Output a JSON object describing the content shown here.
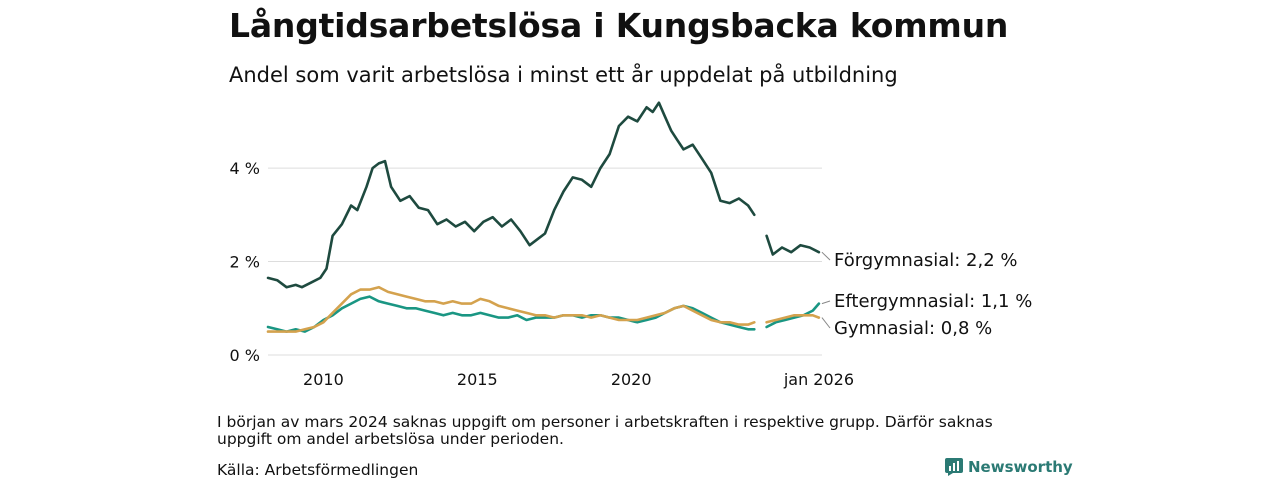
{
  "header": {
    "title": "Långtidsarbetslösa i Kungsbacka kommun",
    "subtitle": "Andel som varit arbetslösa i minst ett år uppdelat på utbildning"
  },
  "footer": {
    "note": "I början av mars 2024 saknas uppgift om personer i arbetskraften i respektive grupp. Därför saknas uppgift om andel arbetslösa under perioden.",
    "source": "Källa: Arbetsförmedlingen",
    "brand": "Newsworthy"
  },
  "colors": {
    "forgymnasial": "#1e4a3f",
    "eftergymnasial": "#1a9683",
    "gymnasial": "#d4a24e",
    "grid": "#dddddd",
    "text": "#111111"
  },
  "chart_data": {
    "type": "line",
    "title": "Långtidsarbetslösa i Kungsbacka kommun",
    "subtitle": "Andel som varit arbetslösa i minst ett år uppdelat på utbildning",
    "xlabel": "",
    "ylabel": "",
    "xlim": [
      2008.2,
      2026.2
    ],
    "ylim": [
      0,
      5.5
    ],
    "x_ticks": [
      2010,
      2015,
      2020,
      2026.1
    ],
    "x_tick_labels": [
      "2010",
      "2015",
      "2020",
      "jan 2026"
    ],
    "y_ticks": [
      0,
      2,
      4
    ],
    "y_tick_labels": [
      "0 %",
      "2 %",
      "4 %"
    ],
    "gap": [
      2024.0,
      2024.4
    ],
    "series": [
      {
        "name": "Förgymnasial",
        "end_label": "Förgymnasial: 2,2 %",
        "color": "#1e4a3f",
        "x": [
          2008.2,
          2008.5,
          2008.8,
          2009.1,
          2009.3,
          2009.6,
          2009.9,
          2010.1,
          2010.3,
          2010.6,
          2010.9,
          2011.1,
          2011.4,
          2011.6,
          2011.8,
          2012.0,
          2012.2,
          2012.5,
          2012.8,
          2013.1,
          2013.4,
          2013.7,
          2014.0,
          2014.3,
          2014.6,
          2014.9,
          2015.2,
          2015.5,
          2015.8,
          2016.1,
          2016.4,
          2016.7,
          2017.0,
          2017.2,
          2017.5,
          2017.8,
          2018.1,
          2018.4,
          2018.7,
          2019.0,
          2019.3,
          2019.6,
          2019.9,
          2020.2,
          2020.5,
          2020.7,
          2020.9,
          2021.1,
          2021.3,
          2021.5,
          2021.7,
          2022.0,
          2022.3,
          2022.6,
          2022.9,
          2023.2,
          2023.5,
          2023.8,
          2024.0,
          null,
          2024.4,
          2024.6,
          2024.9,
          2025.2,
          2025.5,
          2025.8,
          2026.1
        ],
        "values": [
          1.65,
          1.6,
          1.45,
          1.5,
          1.45,
          1.55,
          1.65,
          1.85,
          2.55,
          2.8,
          3.2,
          3.1,
          3.6,
          4.0,
          4.1,
          4.15,
          3.6,
          3.3,
          3.4,
          3.15,
          3.1,
          2.8,
          2.9,
          2.75,
          2.85,
          2.65,
          2.85,
          2.95,
          2.75,
          2.9,
          2.65,
          2.35,
          2.5,
          2.6,
          3.1,
          3.5,
          3.8,
          3.75,
          3.6,
          4.0,
          4.3,
          4.9,
          5.1,
          5.0,
          5.3,
          5.2,
          5.4,
          5.1,
          4.8,
          4.6,
          4.4,
          4.5,
          4.2,
          3.9,
          3.3,
          3.25,
          3.35,
          3.2,
          3.0,
          null,
          2.55,
          2.15,
          2.3,
          2.2,
          2.35,
          2.3,
          2.2
        ]
      },
      {
        "name": "Eftergymnasial",
        "end_label": "Eftergymnasial: 1,1 %",
        "color": "#1a9683",
        "x": [
          2008.2,
          2008.5,
          2008.8,
          2009.1,
          2009.4,
          2009.7,
          2010.0,
          2010.3,
          2010.6,
          2010.9,
          2011.2,
          2011.5,
          2011.8,
          2012.1,
          2012.4,
          2012.7,
          2013.0,
          2013.3,
          2013.6,
          2013.9,
          2014.2,
          2014.5,
          2014.8,
          2015.1,
          2015.4,
          2015.7,
          2016.0,
          2016.3,
          2016.6,
          2016.9,
          2017.2,
          2017.5,
          2017.8,
          2018.1,
          2018.4,
          2018.7,
          2019.0,
          2019.3,
          2019.6,
          2019.9,
          2020.2,
          2020.5,
          2020.8,
          2021.1,
          2021.4,
          2021.7,
          2022.0,
          2022.3,
          2022.6,
          2022.9,
          2023.2,
          2023.5,
          2023.8,
          2024.0,
          null,
          2024.4,
          2024.7,
          2025.0,
          2025.3,
          2025.6,
          2025.9,
          2026.1
        ],
        "values": [
          0.6,
          0.55,
          0.5,
          0.55,
          0.5,
          0.6,
          0.75,
          0.85,
          1.0,
          1.1,
          1.2,
          1.25,
          1.15,
          1.1,
          1.05,
          1.0,
          1.0,
          0.95,
          0.9,
          0.85,
          0.9,
          0.85,
          0.85,
          0.9,
          0.85,
          0.8,
          0.8,
          0.85,
          0.75,
          0.8,
          0.8,
          0.8,
          0.85,
          0.85,
          0.8,
          0.85,
          0.85,
          0.8,
          0.8,
          0.75,
          0.7,
          0.75,
          0.8,
          0.9,
          1.0,
          1.05,
          1.0,
          0.9,
          0.8,
          0.7,
          0.65,
          0.6,
          0.55,
          0.55,
          null,
          0.6,
          0.7,
          0.75,
          0.8,
          0.85,
          0.95,
          1.1
        ]
      },
      {
        "name": "Gymnasial",
        "end_label": "Gymnasial: 0,8 %",
        "color": "#d4a24e",
        "x": [
          2008.2,
          2008.5,
          2008.8,
          2009.1,
          2009.4,
          2009.7,
          2010.0,
          2010.3,
          2010.6,
          2010.9,
          2011.2,
          2011.5,
          2011.8,
          2012.1,
          2012.4,
          2012.7,
          2013.0,
          2013.3,
          2013.6,
          2013.9,
          2014.2,
          2014.5,
          2014.8,
          2015.1,
          2015.4,
          2015.7,
          2016.0,
          2016.3,
          2016.6,
          2016.9,
          2017.2,
          2017.5,
          2017.8,
          2018.1,
          2018.4,
          2018.7,
          2019.0,
          2019.3,
          2019.6,
          2019.9,
          2020.2,
          2020.5,
          2020.8,
          2021.1,
          2021.4,
          2021.7,
          2022.0,
          2022.3,
          2022.6,
          2022.9,
          2023.2,
          2023.5,
          2023.8,
          2024.0,
          null,
          2024.4,
          2024.7,
          2025.0,
          2025.3,
          2025.6,
          2025.9,
          2026.1
        ],
        "values": [
          0.5,
          0.5,
          0.5,
          0.5,
          0.55,
          0.6,
          0.7,
          0.9,
          1.1,
          1.3,
          1.4,
          1.4,
          1.45,
          1.35,
          1.3,
          1.25,
          1.2,
          1.15,
          1.15,
          1.1,
          1.15,
          1.1,
          1.1,
          1.2,
          1.15,
          1.05,
          1.0,
          0.95,
          0.9,
          0.85,
          0.85,
          0.8,
          0.85,
          0.85,
          0.85,
          0.8,
          0.85,
          0.8,
          0.75,
          0.75,
          0.75,
          0.8,
          0.85,
          0.9,
          1.0,
          1.05,
          0.95,
          0.85,
          0.75,
          0.7,
          0.7,
          0.65,
          0.65,
          0.7,
          null,
          0.7,
          0.75,
          0.8,
          0.85,
          0.85,
          0.85,
          0.8
        ]
      }
    ]
  }
}
